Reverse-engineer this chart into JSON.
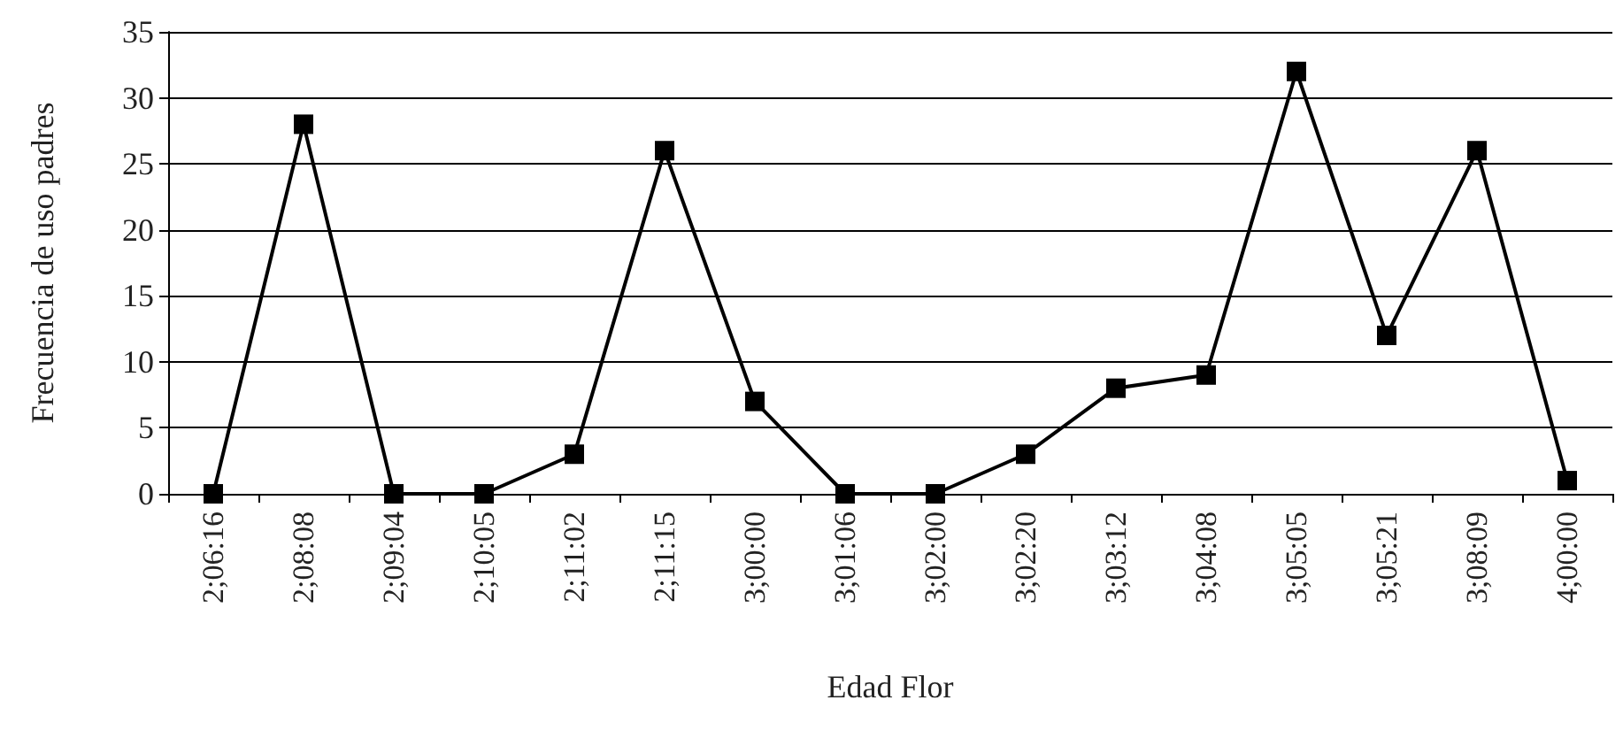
{
  "chart_data": {
    "type": "line",
    "xlabel": "Edad Flor",
    "ylabel": "Frecuencia de uso padres",
    "categories": [
      "2;06:16",
      "2;08:08",
      "2;09:04",
      "2;10:05",
      "2;11:02",
      "2;11:15",
      "3;00:00",
      "3;01:06",
      "3;02:00",
      "3;02:20",
      "3;03:12",
      "3;04:08",
      "3;05:05",
      "3;05:21",
      "3;08:09",
      "4;00:00"
    ],
    "values": [
      0,
      28,
      0,
      0,
      3,
      26,
      7,
      0,
      0,
      3,
      8,
      9,
      32,
      12,
      26,
      1
    ],
    "color": "#000000",
    "ylim": [
      0,
      35
    ],
    "yticks": [
      0,
      5,
      10,
      15,
      20,
      25,
      30,
      35
    ],
    "grid": "y",
    "marker": "square",
    "line_style": "solid"
  }
}
